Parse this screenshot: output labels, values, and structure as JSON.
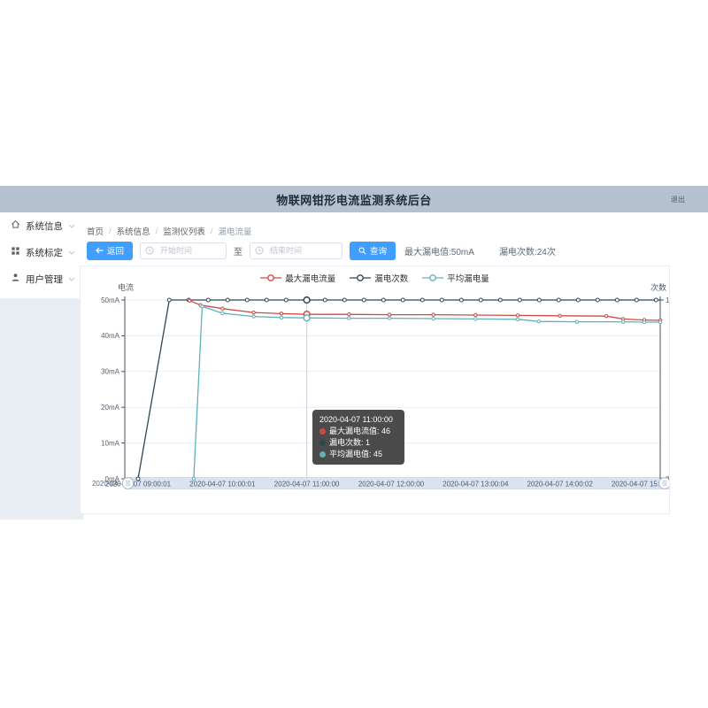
{
  "header": {
    "title": "物联网钳形电流监测系统后台",
    "logout_label": "退出"
  },
  "sidebar": {
    "items": [
      {
        "label": "系统信息",
        "icon": "home-icon"
      },
      {
        "label": "系统标定",
        "icon": "grid-icon"
      },
      {
        "label": "用户管理",
        "icon": "user-icon"
      }
    ]
  },
  "breadcrumb": {
    "separator": "/",
    "items": [
      "首页",
      "系统信息",
      "监测仪列表",
      "漏电流量"
    ]
  },
  "toolbar": {
    "back_label": "返回",
    "start_placeholder": "开始时间",
    "to_label": "至",
    "end_placeholder": "结束时间",
    "query_label": "查询",
    "stats": [
      {
        "text": "最大漏电值:50mA"
      },
      {
        "text": "漏电次数:24次"
      }
    ]
  },
  "chart_data": {
    "type": "line",
    "legend": [
      {
        "name": "最大漏电流量",
        "color": "#cf4944"
      },
      {
        "name": "漏电次数",
        "color": "#2f4554"
      },
      {
        "name": "平均漏电量",
        "color": "#61b0ba"
      }
    ],
    "y_left": {
      "name": "电流",
      "min": 0,
      "max": 50,
      "ticks": [
        "50mA",
        "40mA",
        "30mA",
        "20mA",
        "10mA",
        "0mA"
      ],
      "tick_values": [
        50,
        40,
        30,
        20,
        10,
        0
      ]
    },
    "y_right": {
      "name": "次数",
      "min": 0,
      "max": 1,
      "ticks": [
        "1次",
        "0次"
      ],
      "tick_values": [
        1,
        0
      ]
    },
    "x_ticks": [
      "2020-04-07 09:00:01",
      "2020-04-07 10:00:01",
      "2020-04-07 11:00:00",
      "2020-04-07 12:00:00",
      "2020-04-07 13:00:04",
      "2020-04-07 14:00:02",
      "2020-04-07 15:00:02"
    ],
    "x_tick_hours": [
      9,
      10,
      11,
      12,
      13,
      14,
      15
    ],
    "series": [
      {
        "name": "漏电次数",
        "axis": "right",
        "color": "#2f4554",
        "points": [
          [
            9.0,
            0
          ],
          [
            9.37,
            1
          ],
          [
            15.19,
            1
          ]
        ],
        "marker_start": 9.37,
        "marker_step": 0.2308,
        "marker_end": 15.19,
        "marker_value": 1
      },
      {
        "name": "最大漏电流量",
        "axis": "left",
        "color": "#cf4944",
        "points": [
          [
            9.61,
            49.8
          ],
          [
            9.74,
            48.6
          ],
          [
            10.0,
            47.6
          ],
          [
            10.37,
            46.5
          ],
          [
            10.7,
            46.2
          ],
          [
            11.0,
            46
          ],
          [
            11.5,
            46
          ],
          [
            11.98,
            45.9
          ],
          [
            12.5,
            45.9
          ],
          [
            13.0,
            45.8
          ],
          [
            13.5,
            45.7
          ],
          [
            14.0,
            45.6
          ],
          [
            14.55,
            45.5
          ],
          [
            14.75,
            44.7
          ],
          [
            15.0,
            44.4
          ],
          [
            15.19,
            44.3
          ]
        ]
      },
      {
        "name": "平均漏电量",
        "axis": "left",
        "color": "#61b0ba",
        "points": [
          [
            9.66,
            0
          ],
          [
            9.76,
            48.2
          ],
          [
            10.0,
            46.3
          ],
          [
            10.37,
            45.4
          ],
          [
            10.7,
            45.1
          ],
          [
            11.0,
            45
          ],
          [
            11.5,
            44.9
          ],
          [
            11.98,
            44.9
          ],
          [
            12.5,
            44.8
          ],
          [
            13.0,
            44.7
          ],
          [
            13.5,
            44.6
          ],
          [
            13.75,
            44.0
          ],
          [
            14.2,
            43.9
          ],
          [
            14.75,
            43.9
          ],
          [
            15.0,
            43.8
          ],
          [
            15.19,
            43.8
          ]
        ]
      }
    ],
    "datazoom": {
      "left_label": "2020-04-"
    },
    "tooltip": {
      "title": "2020-04-07 11:00:00",
      "at_hour": 11,
      "rows": [
        {
          "text": "最大漏电流值: 46",
          "label": "最大漏电流值",
          "value": 46,
          "color": "#cf4944"
        },
        {
          "text": "漏电次数: 1",
          "label": "漏电次数",
          "value": 1,
          "color": "#2f4554"
        },
        {
          "text": "平均漏电值: 45",
          "label": "平均漏电值",
          "value": 45,
          "color": "#61b0ba"
        }
      ],
      "emphasis": [
        {
          "series": 0,
          "hour": 11,
          "value": 1
        },
        {
          "series": 1,
          "hour": 11,
          "value": 46
        },
        {
          "series": 2,
          "hour": 11,
          "value": 45
        }
      ]
    }
  }
}
